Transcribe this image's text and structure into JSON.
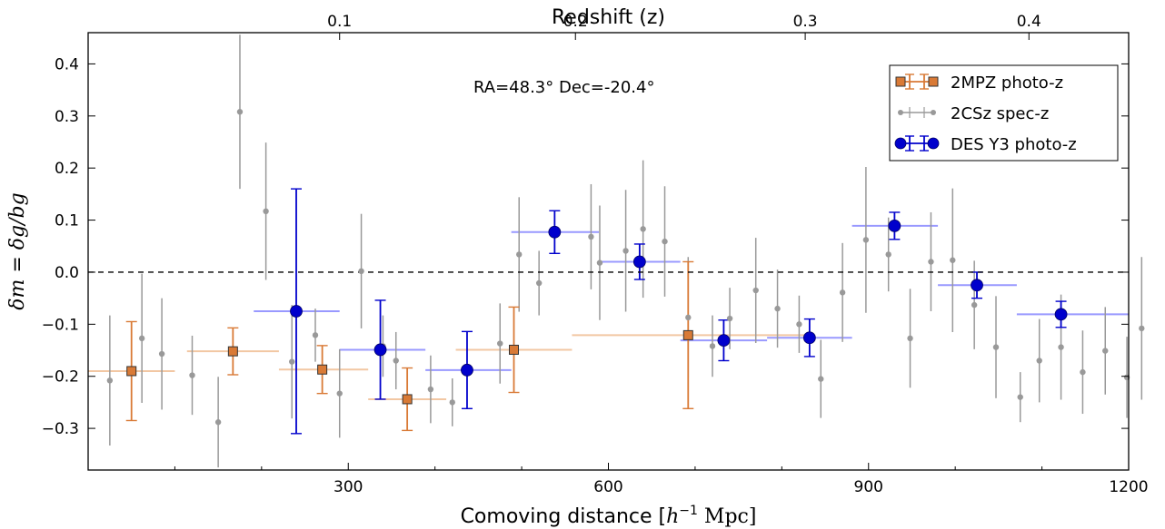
{
  "chart_data": {
    "type": "scatter",
    "xlabel_prefix": "Comoving distance [",
    "xlabel_unit": "h",
    "xlabel_sup": "−1",
    "xlabel_suffix": " Mpc]",
    "x2label": "Redshift (z)",
    "ylabel": "δm = δg/bg",
    "annotation": "RA=48.3°  Dec=-20.4°",
    "xlim": [
      0,
      1200
    ],
    "ylim": [
      -0.38,
      0.46
    ],
    "xticks": [
      300,
      600,
      900,
      1200
    ],
    "yticks": [
      -0.3,
      -0.2,
      -0.1,
      0.0,
      0.1,
      0.2,
      0.3,
      0.4
    ],
    "x2ticks": [
      {
        "z": 0.1,
        "x": 290
      },
      {
        "z": 0.2,
        "x": 562
      },
      {
        "z": 0.3,
        "x": 827
      },
      {
        "z": 0.4,
        "x": 1085
      }
    ],
    "reference_line_y": 0.0,
    "grid": false,
    "legend_position": "top-right",
    "series": [
      {
        "name": "2MPZ photo-z",
        "color": "#d97a36",
        "xerr_color": "#f2c7a3",
        "points": [
          {
            "x": 50,
            "y": -0.19,
            "xlo": 0,
            "xhi": 100,
            "ylo": -0.285,
            "yhi": -0.095
          },
          {
            "x": 167,
            "y": -0.152,
            "xlo": 114,
            "xhi": 220,
            "ylo": -0.197,
            "yhi": -0.107
          },
          {
            "x": 270,
            "y": -0.187,
            "xlo": 220,
            "xhi": 323,
            "ylo": -0.233,
            "yhi": -0.141
          },
          {
            "x": 368,
            "y": -0.244,
            "xlo": 323,
            "xhi": 413,
            "ylo": -0.304,
            "yhi": -0.184
          },
          {
            "x": 491,
            "y": -0.149,
            "xlo": 424,
            "xhi": 558,
            "ylo": -0.231,
            "yhi": -0.067
          },
          {
            "x": 692,
            "y": -0.121,
            "xlo": 558,
            "xhi": 826,
            "ylo": -0.262,
            "yhi": 0.02
          }
        ]
      },
      {
        "name": "2CSz spec-z",
        "color": "#999999",
        "points": [
          {
            "x": 25,
            "y": -0.208,
            "ylo": -0.333,
            "yhi": -0.083
          },
          {
            "x": 62,
            "y": -0.127,
            "ylo": -0.251,
            "yhi": -0.003
          },
          {
            "x": 85,
            "y": -0.157,
            "ylo": -0.264,
            "yhi": -0.05
          },
          {
            "x": 120,
            "y": -0.198,
            "ylo": -0.274,
            "yhi": -0.122
          },
          {
            "x": 150,
            "y": -0.288,
            "ylo": -0.375,
            "yhi": -0.201
          },
          {
            "x": 175,
            "y": 0.308,
            "ylo": 0.16,
            "yhi": 0.456
          },
          {
            "x": 205,
            "y": 0.117,
            "ylo": -0.015,
            "yhi": 0.249
          },
          {
            "x": 235,
            "y": -0.172,
            "ylo": -0.281,
            "yhi": -0.063
          },
          {
            "x": 262,
            "y": -0.121,
            "ylo": -0.172,
            "yhi": -0.07
          },
          {
            "x": 290,
            "y": -0.233,
            "ylo": -0.318,
            "yhi": -0.148
          },
          {
            "x": 315,
            "y": 0.002,
            "ylo": -0.108,
            "yhi": 0.112
          },
          {
            "x": 340,
            "y": -0.142,
            "ylo": -0.201,
            "yhi": -0.083
          },
          {
            "x": 355,
            "y": -0.17,
            "ylo": -0.225,
            "yhi": -0.115
          },
          {
            "x": 395,
            "y": -0.225,
            "ylo": -0.29,
            "yhi": -0.16
          },
          {
            "x": 420,
            "y": -0.25,
            "ylo": -0.296,
            "yhi": -0.204
          },
          {
            "x": 475,
            "y": -0.137,
            "ylo": -0.214,
            "yhi": -0.06
          },
          {
            "x": 497,
            "y": 0.034,
            "ylo": -0.076,
            "yhi": 0.144
          },
          {
            "x": 520,
            "y": -0.021,
            "ylo": -0.083,
            "yhi": 0.041
          },
          {
            "x": 580,
            "y": 0.068,
            "ylo": -0.033,
            "yhi": 0.169
          },
          {
            "x": 590,
            "y": 0.018,
            "ylo": -0.092,
            "yhi": 0.128
          },
          {
            "x": 620,
            "y": 0.041,
            "ylo": -0.076,
            "yhi": 0.158
          },
          {
            "x": 640,
            "y": 0.083,
            "ylo": -0.049,
            "yhi": 0.215
          },
          {
            "x": 665,
            "y": 0.059,
            "ylo": -0.047,
            "yhi": 0.165
          },
          {
            "x": 692,
            "y": -0.087,
            "ylo": -0.203,
            "yhi": 0.029
          },
          {
            "x": 720,
            "y": -0.142,
            "ylo": -0.201,
            "yhi": -0.083
          },
          {
            "x": 740,
            "y": -0.089,
            "ylo": -0.148,
            "yhi": -0.03
          },
          {
            "x": 770,
            "y": -0.035,
            "ylo": -0.136,
            "yhi": 0.066
          },
          {
            "x": 795,
            "y": -0.07,
            "ylo": -0.145,
            "yhi": 0.005
          },
          {
            "x": 820,
            "y": -0.1,
            "ylo": -0.155,
            "yhi": -0.045
          },
          {
            "x": 845,
            "y": -0.205,
            "ylo": -0.28,
            "yhi": -0.13
          },
          {
            "x": 870,
            "y": -0.039,
            "ylo": -0.134,
            "yhi": 0.056
          },
          {
            "x": 897,
            "y": 0.062,
            "ylo": -0.078,
            "yhi": 0.202
          },
          {
            "x": 923,
            "y": 0.034,
            "ylo": -0.037,
            "yhi": 0.105
          },
          {
            "x": 948,
            "y": -0.127,
            "ylo": -0.222,
            "yhi": -0.032
          },
          {
            "x": 972,
            "y": 0.02,
            "ylo": -0.075,
            "yhi": 0.115
          },
          {
            "x": 997,
            "y": 0.023,
            "ylo": -0.115,
            "yhi": 0.161
          },
          {
            "x": 1022,
            "y": -0.063,
            "ylo": -0.148,
            "yhi": 0.022
          },
          {
            "x": 1047,
            "y": -0.144,
            "ylo": -0.242,
            "yhi": -0.046
          },
          {
            "x": 1075,
            "y": -0.24,
            "ylo": -0.288,
            "yhi": -0.192
          },
          {
            "x": 1097,
            "y": -0.17,
            "ylo": -0.25,
            "yhi": -0.09
          },
          {
            "x": 1122,
            "y": -0.144,
            "ylo": -0.245,
            "yhi": -0.043
          },
          {
            "x": 1147,
            "y": -0.192,
            "ylo": -0.272,
            "yhi": -0.112
          },
          {
            "x": 1173,
            "y": -0.151,
            "ylo": -0.235,
            "yhi": -0.067
          },
          {
            "x": 1198,
            "y": -0.202,
            "ylo": -0.28,
            "yhi": -0.124
          },
          {
            "x": 1215,
            "y": -0.108,
            "ylo": -0.245,
            "yhi": 0.029
          }
        ]
      },
      {
        "name": "DES Y3 photo-z",
        "color": "#0000cc",
        "xerr_color": "#9999ff",
        "points": [
          {
            "x": 240,
            "y": -0.075,
            "xlo": 191,
            "xhi": 290,
            "ylo": -0.31,
            "yhi": 0.16
          },
          {
            "x": 337,
            "y": -0.149,
            "xlo": 290,
            "xhi": 389,
            "ylo": -0.244,
            "yhi": -0.054
          },
          {
            "x": 437,
            "y": -0.188,
            "xlo": 389,
            "xhi": 488,
            "ylo": -0.262,
            "yhi": -0.114
          },
          {
            "x": 538,
            "y": 0.077,
            "xlo": 488,
            "xhi": 589,
            "ylo": 0.036,
            "yhi": 0.118
          },
          {
            "x": 636,
            "y": 0.02,
            "xlo": 589,
            "xhi": 683,
            "ylo": -0.014,
            "yhi": 0.054
          },
          {
            "x": 733,
            "y": -0.131,
            "xlo": 683,
            "xhi": 783,
            "ylo": -0.17,
            "yhi": -0.092
          },
          {
            "x": 832,
            "y": -0.126,
            "xlo": 783,
            "xhi": 881,
            "ylo": -0.162,
            "yhi": -0.09
          },
          {
            "x": 930,
            "y": 0.089,
            "xlo": 881,
            "xhi": 980,
            "ylo": 0.063,
            "yhi": 0.115
          },
          {
            "x": 1025,
            "y": -0.025,
            "xlo": 980,
            "xhi": 1071,
            "ylo": -0.05,
            "yhi": 0.0
          },
          {
            "x": 1122,
            "y": -0.081,
            "xlo": 1071,
            "xhi": 1200,
            "ylo": -0.106,
            "yhi": -0.056
          }
        ]
      }
    ]
  }
}
